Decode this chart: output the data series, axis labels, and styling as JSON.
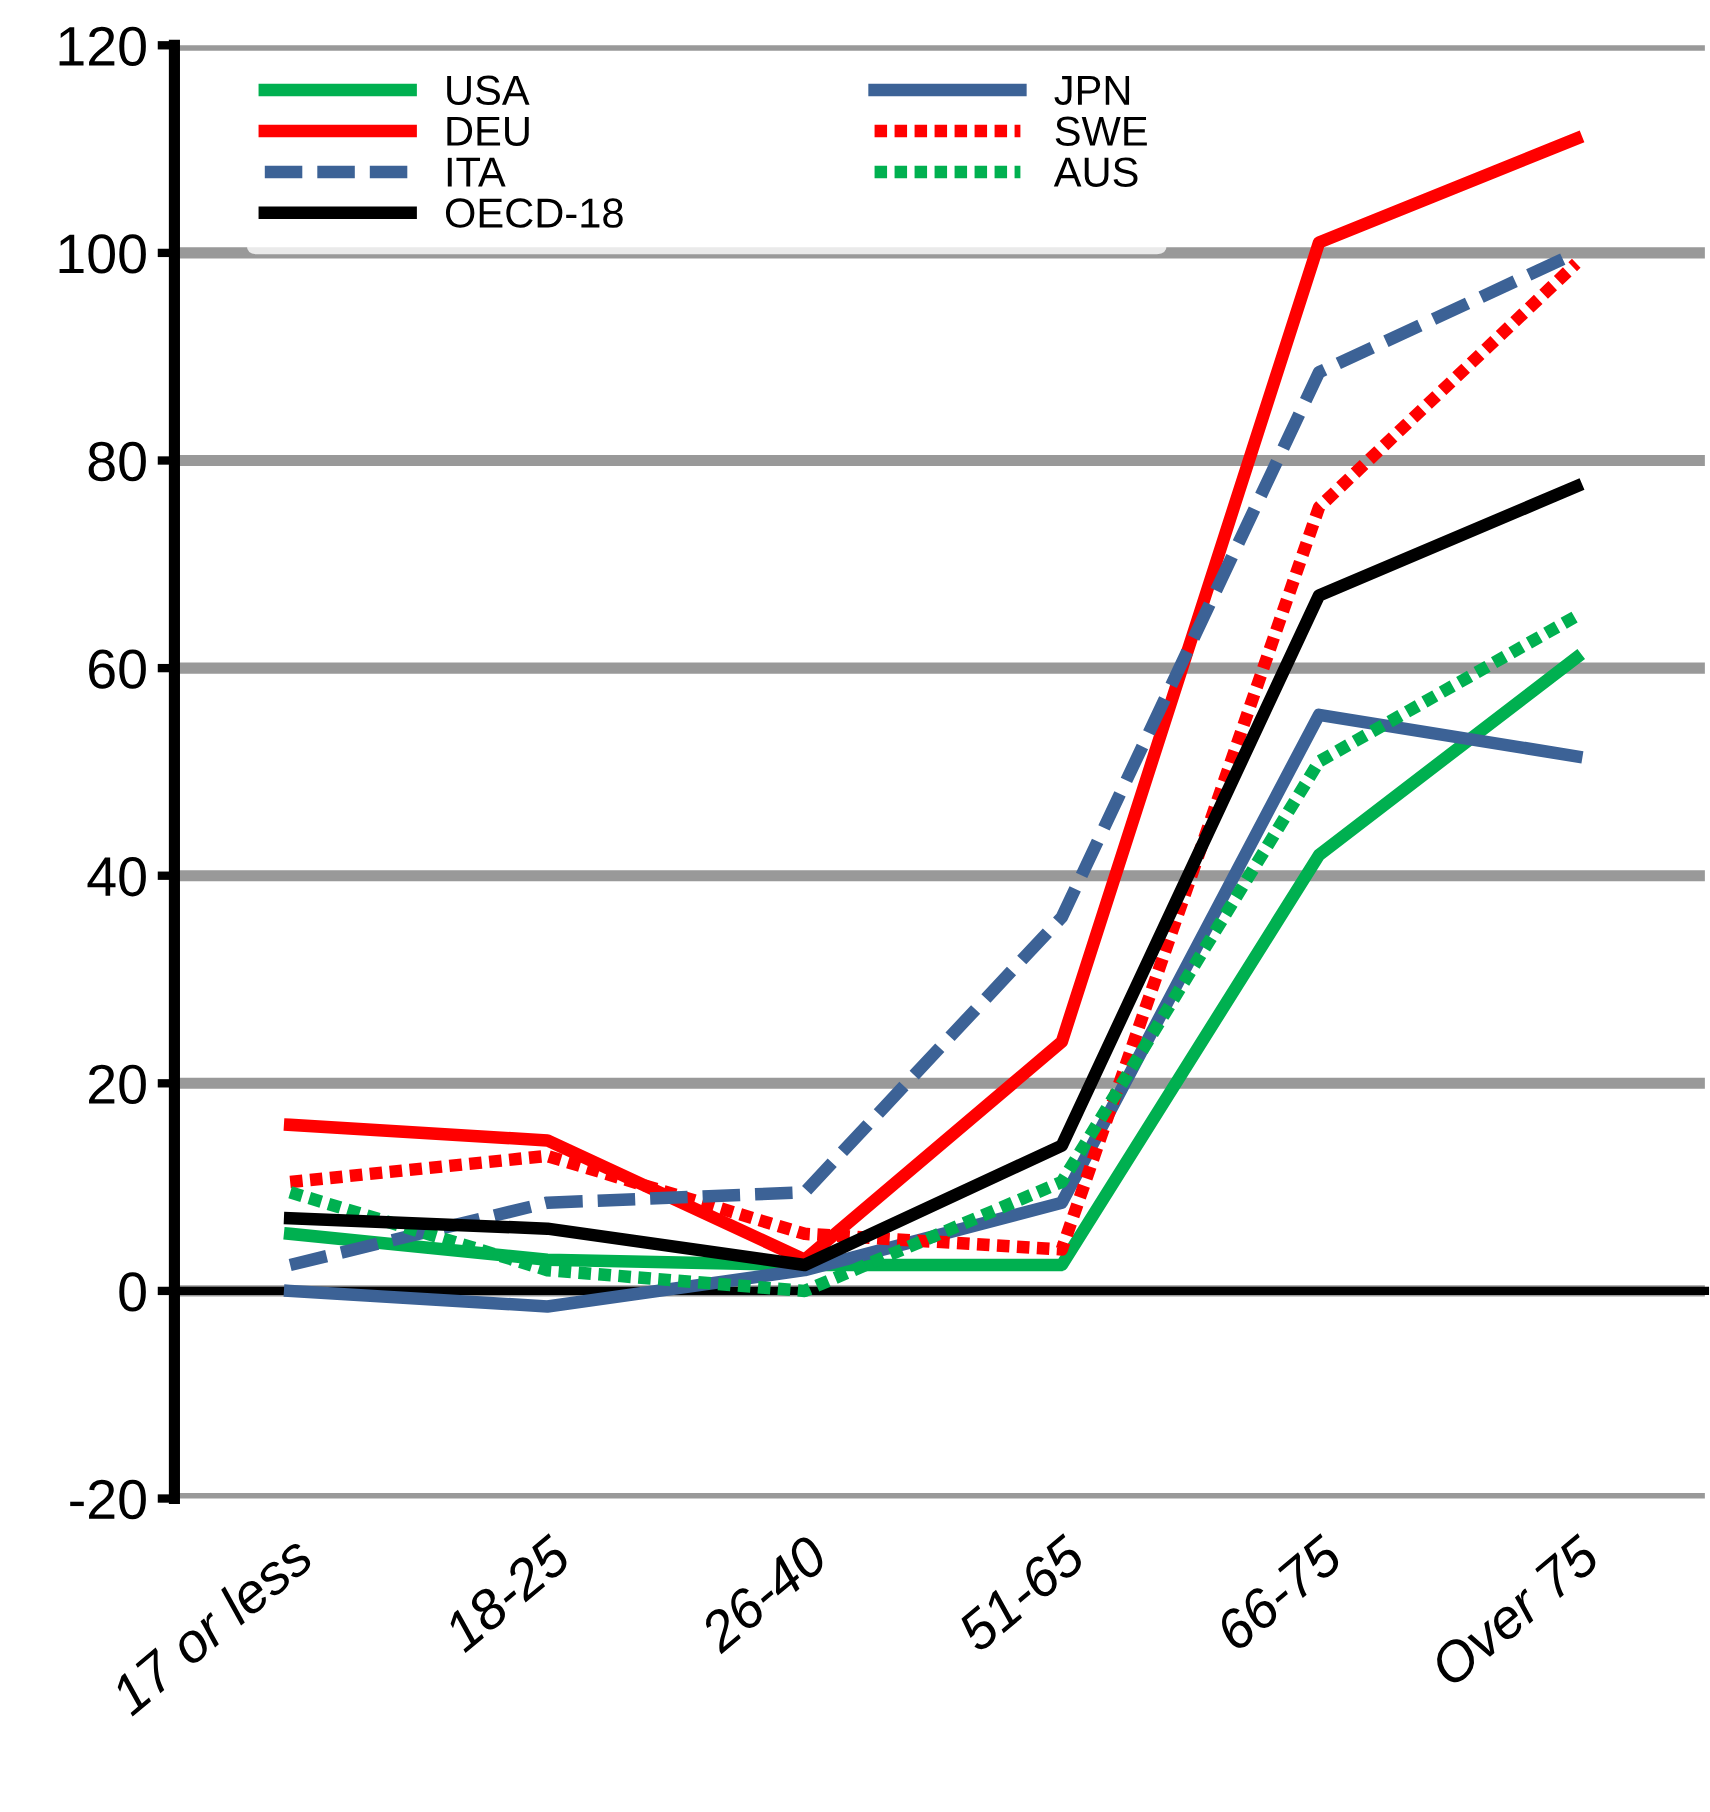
{
  "chart_data": {
    "type": "line",
    "categories": [
      "17 or less",
      "18-25",
      "26-40",
      "51-65",
      "66-75",
      "Over 75"
    ],
    "series": [
      {
        "name": "USA",
        "color": "#00b050",
        "line_style": "solid",
        "values": [
          5.5,
          3,
          2.5,
          2.5,
          42,
          61
        ]
      },
      {
        "name": "JPN",
        "color": "#3c6296",
        "line_style": "solid",
        "values": [
          0,
          -1.5,
          2,
          8.5,
          55.5,
          51.5
        ]
      },
      {
        "name": "DEU",
        "color": "#ff0000",
        "line_style": "solid",
        "values": [
          16,
          14.5,
          3,
          24,
          101,
          111
        ]
      },
      {
        "name": "SWE",
        "color": "#ff0000",
        "line_style": "dotted",
        "values": [
          10.5,
          13,
          5.5,
          4,
          75.5,
          99
        ]
      },
      {
        "name": "ITA",
        "color": "#3c6296",
        "line_style": "dashed",
        "values": [
          2.5,
          8.5,
          9.5,
          36,
          88.5,
          100
        ]
      },
      {
        "name": "AUS",
        "color": "#00b050",
        "line_style": "dotted",
        "values": [
          9.5,
          2,
          0,
          10.5,
          51,
          65
        ]
      },
      {
        "name": "OECD-18",
        "color": "#000000",
        "line_style": "solid",
        "values": [
          7,
          6,
          2.5,
          14,
          67,
          77.5
        ]
      }
    ],
    "ylim": [
      -20,
      120
    ],
    "yticks": [
      -20,
      0,
      20,
      40,
      60,
      80,
      100,
      120
    ],
    "grid": "y",
    "legend": "top left",
    "marker": "none"
  }
}
